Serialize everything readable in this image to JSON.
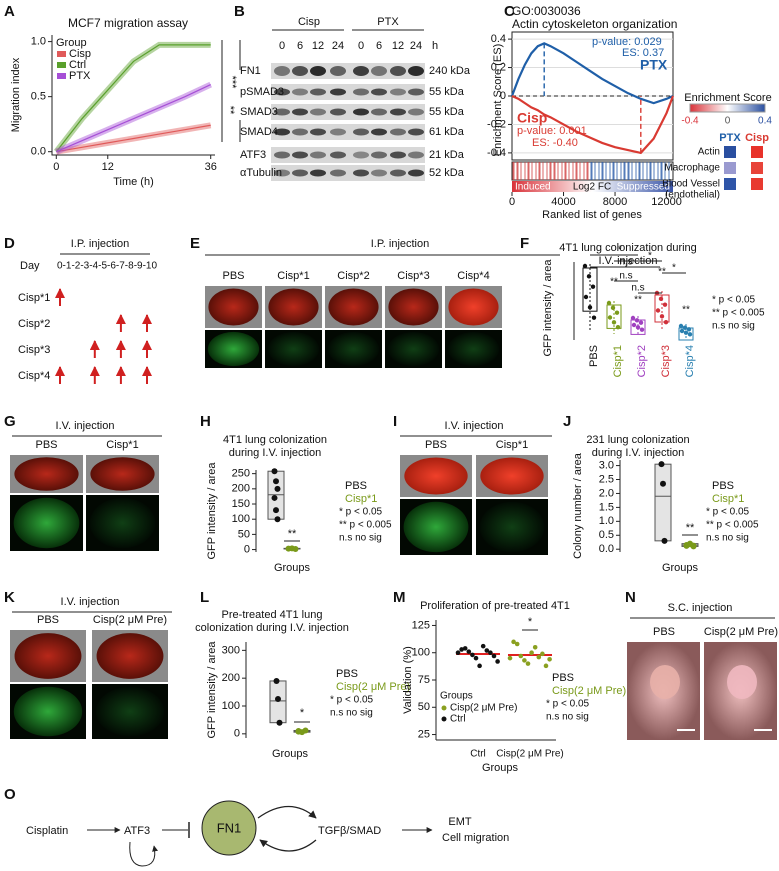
{
  "letters": [
    "A",
    "B",
    "C",
    "D",
    "E",
    "F",
    "G",
    "H",
    "I",
    "J",
    "K",
    "L",
    "M",
    "N",
    "O"
  ],
  "A": {
    "type": "line",
    "title": "MCF7 migration assay",
    "ylabel": "Migration index",
    "xlabel": "Time (h)",
    "legend_title": "Group",
    "x": [
      0,
      6,
      12,
      18,
      24,
      30,
      36
    ],
    "xlim": [
      -1,
      37
    ],
    "xticks": [
      0,
      12,
      36
    ],
    "ylim": [
      -0.03,
      1.06
    ],
    "yticks": [
      {
        "value": 0,
        "label": "0.0"
      },
      {
        "value": 0.5,
        "label": "0.5"
      },
      {
        "value": 1,
        "label": "1.0"
      }
    ],
    "series": [
      {
        "name": "Cisp",
        "color": "#e05a5a",
        "values": [
          0,
          0.04,
          0.08,
          0.12,
          0.16,
          0.2,
          0.24
        ]
      },
      {
        "name": "Ctrl",
        "color": "#5aa02c",
        "values": [
          0,
          0.3,
          0.56,
          0.82,
          0.97,
          0.97,
          0.97
        ]
      },
      {
        "name": "PTX",
        "color": "#a64fd6",
        "values": [
          0,
          0.1,
          0.2,
          0.3,
          0.4,
          0.5,
          0.61
        ]
      }
    ],
    "sig": [
      "***",
      "**"
    ]
  },
  "B": {
    "groups": [
      "Cisp",
      "PTX"
    ],
    "lanes": [
      "0",
      "6",
      "12",
      "24",
      "0",
      "6",
      "12",
      "24"
    ],
    "unit": "h",
    "rows": [
      {
        "name": "FN1",
        "size": "240 kDa"
      },
      {
        "name": "pSMAD3",
        "size": "55 kDa"
      },
      {
        "name": "SMAD3",
        "size": "55 kDa"
      },
      {
        "name": "SMAD4",
        "size": "61 kDa"
      },
      {
        "name": "ATF3",
        "size": "21 kDa"
      },
      {
        "name": "αTubulin",
        "size": "52 kDa"
      }
    ]
  },
  "C": {
    "type": "line",
    "id": "GO:0030036",
    "title": "Actin cytoskeleton organization",
    "ylabel": "Enrichment Score (ES)",
    "xlabel": "Ranked list of genes",
    "x": [
      0,
      500,
      1000,
      1500,
      2000,
      2500,
      3000,
      4000,
      5000,
      6000,
      7000,
      8000,
      9000,
      10000,
      11000,
      12000,
      12500
    ],
    "xlim": [
      0,
      12500
    ],
    "xticks": [
      0,
      4000,
      8000,
      12000
    ],
    "ylim": [
      -0.45,
      0.45
    ],
    "yticks": [
      0.4,
      0.2,
      0,
      -0.2,
      -0.4
    ],
    "series": [
      {
        "name": "PTX",
        "color": "#1f5fa8",
        "pvalue": "p-value: 0.029",
        "es": "ES: 0.37",
        "values": [
          0,
          0.12,
          0.22,
          0.3,
          0.35,
          0.37,
          0.35,
          0.3,
          0.24,
          0.18,
          0.12,
          0.07,
          0.02,
          -0.02,
          -0.05,
          -0.02,
          0
        ]
      },
      {
        "name": "Cisp",
        "color": "#d93a32",
        "pvalue": "p-value: 0.001",
        "es": "ES: -0.40",
        "values": [
          0,
          -0.02,
          -0.05,
          -0.08,
          -0.1,
          -0.13,
          -0.15,
          -0.2,
          -0.25,
          -0.29,
          -0.33,
          -0.36,
          -0.38,
          -0.4,
          -0.3,
          -0.12,
          0
        ]
      }
    ],
    "ranking": [
      "Induced",
      "Log2 FC",
      "Suppressed"
    ],
    "heatmap": {
      "title": "Enrichment Score",
      "ticks": [
        -0.4,
        0,
        0.4
      ],
      "columns": [
        "PTX",
        "Cisp"
      ],
      "rows": [
        [
          "Actin"
        ],
        [
          "Macrophage"
        ],
        [
          "Blood Vessel",
          "(endothelial)"
        ]
      ],
      "cells": [
        [
          "#2a4fa0",
          "#e8322a"
        ],
        [
          "#9a9ad0",
          "#e8443a"
        ],
        [
          "#2f55a8",
          "#e83a30"
        ]
      ]
    }
  },
  "D": {
    "title": "I.P. injection",
    "day_label": "Day",
    "days": "0-1-2-3-4-5-6-7-8-9-10",
    "rows": [
      "Cisp*1",
      "Cisp*2",
      "Cisp*3",
      "Cisp*4"
    ],
    "schedule": [
      [
        0
      ],
      [
        7,
        10
      ],
      [
        4,
        7,
        10
      ],
      [
        0,
        4,
        7,
        10
      ]
    ]
  },
  "E": {
    "title": "I.P. injection",
    "labels": [
      "PBS",
      "Cisp*1",
      "Cisp*2",
      "Cisp*3",
      "Cisp*4"
    ]
  },
  "F": {
    "title": [
      "4T1 lung colonization during",
      "I.V. injection"
    ],
    "ylabel": "GFP intensity / area",
    "categories": [
      "PBS",
      "Cisp*1",
      "Cisp*2",
      "Cisp*3",
      "Cisp*4"
    ],
    "colors": [
      "#111111",
      "#7a9a1a",
      "#a040c0",
      "#d0303a",
      "#2a80b0"
    ],
    "sig": [
      "**",
      "**",
      "**",
      "**",
      "n.s",
      "n.s",
      "n.s",
      "*",
      "*",
      "*"
    ],
    "key": [
      "* p < 0.05",
      "** p < 0.005",
      "n.s no sig"
    ]
  },
  "G": {
    "title": "I.V. injection",
    "labels": [
      "PBS",
      "Cisp*1"
    ]
  },
  "H": {
    "type": "scatter",
    "title": [
      "4T1 lung colonization",
      "during I.V. injection"
    ],
    "ylabel": "GFP intensity / area",
    "xlabel": "Groups",
    "ylim": [
      -8,
      262
    ],
    "yticks": [
      0,
      50,
      100,
      150,
      200,
      250
    ],
    "groups": [
      {
        "color": "#111111",
        "values": [
          258,
          225,
          200,
          170,
          130,
          100
        ]
      },
      {
        "color": "#7a9a1a",
        "values": [
          3,
          4,
          2
        ]
      }
    ],
    "sig": "**",
    "key": [
      "PBS",
      "Cisp*1",
      "* p < 0.05",
      "** p < 0.005",
      "n.s no sig"
    ],
    "key_colors": [
      "#111111",
      "#7a9a1a",
      "#111111",
      "#111111",
      "#111111"
    ]
  },
  "I": {
    "title": "I.V. injection",
    "labels": [
      "PBS",
      "Cisp*1"
    ]
  },
  "J": {
    "type": "scatter",
    "title": [
      "231 lung colonization",
      "during I.V. injection"
    ],
    "ylabel": "Colony number / area",
    "xlabel": "Groups",
    "ylim": [
      -0.1,
      3.2
    ],
    "yticks": [
      {
        "value": 0,
        "label": "0.0"
      },
      0.5,
      {
        "value": 1,
        "label": "1.0"
      },
      1.5,
      {
        "value": 2,
        "label": "2.0"
      },
      2.5,
      {
        "value": 3,
        "label": "3.0"
      }
    ],
    "groups": [
      {
        "color": "#111111",
        "values": [
          3.05,
          2.35,
          0.3
        ]
      },
      {
        "color": "#7a9a1a",
        "values": [
          0.12,
          0.18,
          0.1,
          0.15,
          0.2,
          0.13
        ]
      }
    ],
    "sig": "**",
    "key": [
      "PBS",
      "Cisp*1",
      "* p < 0.05",
      "** p < 0.005",
      "n.s no sig"
    ],
    "key_colors": [
      "#111111",
      "#7a9a1a",
      "#111111",
      "#111111",
      "#111111"
    ]
  },
  "K": {
    "title": "I.V. injection",
    "labels": [
      "PBS",
      "Cisp(2 μM Pre)"
    ]
  },
  "L": {
    "type": "scatter",
    "title": [
      "Pre-treated 4T1 lung",
      "colonization during I.V. injection"
    ],
    "ylabel": "GFP intensity / area",
    "xlabel": "Groups",
    "ylim": [
      -15,
      330
    ],
    "yticks": [
      0,
      100,
      200,
      300
    ],
    "groups": [
      {
        "color": "#111111",
        "values": [
          190,
          125,
          40
        ]
      },
      {
        "color": "#7a9a1a",
        "values": [
          10,
          6,
          12,
          8
        ]
      }
    ],
    "sig": "*",
    "key": [
      "PBS",
      "Cisp(2 μM Pre)",
      "* p < 0.05",
      "n.s no sig"
    ],
    "key_colors": [
      "#111111",
      "#7a9a1a",
      "#111111",
      "#111111"
    ]
  },
  "M": {
    "type": "scatter",
    "title": "Proliferation of pre-treated 4T1",
    "ylabel": "Validation (%)",
    "xlabel": "Groups",
    "categories": [
      "Ctrl",
      "Cisp(2 μM Pre)"
    ],
    "ylim": [
      20,
      130
    ],
    "yticks": [
      25,
      50,
      75,
      100,
      125
    ],
    "groups": [
      {
        "name": "Ctrl",
        "color": "#111111",
        "values": [
          100,
          103,
          104,
          101,
          98,
          95,
          88,
          106,
          102,
          100,
          97,
          92
        ]
      },
      {
        "name": "Cisp(2 μM Pre)",
        "color": "#8aa020",
        "values": [
          95,
          110,
          108,
          97,
          93,
          90,
          100,
          105,
          96,
          99,
          88,
          94
        ]
      }
    ],
    "legend_title": "Groups",
    "sig": "*",
    "key": [
      "PBS",
      "Cisp(2 μM Pre)",
      "* p < 0.05",
      "n.s no sig"
    ],
    "key_colors": [
      "#111111",
      "#7a9a1a",
      "#111111",
      "#111111"
    ]
  },
  "N": {
    "title": "S.C. injection",
    "labels": [
      "PBS",
      "Cisp(2 μM Pre)"
    ]
  },
  "O": {
    "nodes": [
      "Cisplatin",
      "ATF3",
      "FN1",
      "TGFβ/SMAD",
      "EMT",
      "Cell migration"
    ]
  }
}
